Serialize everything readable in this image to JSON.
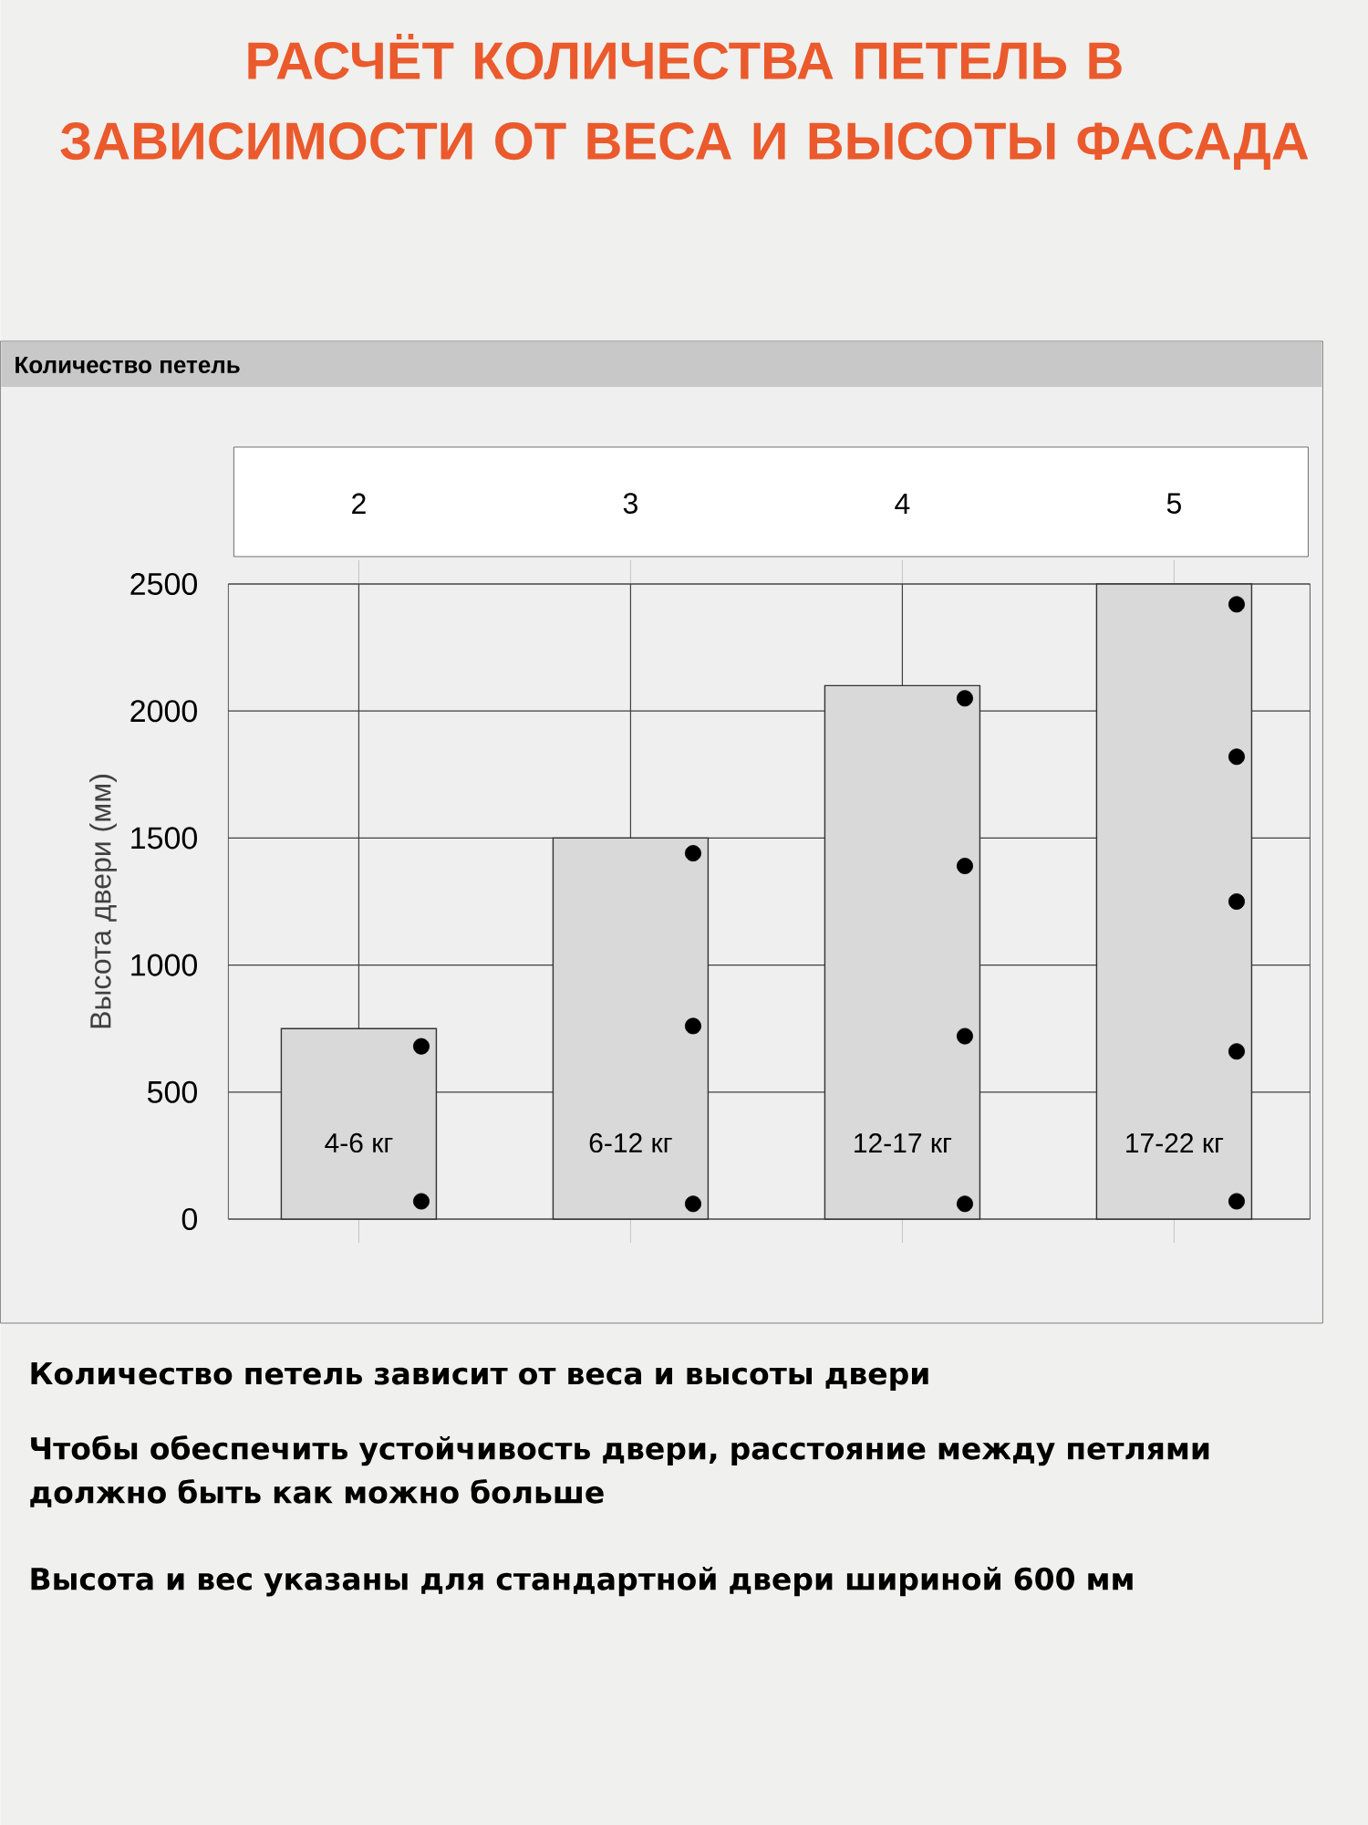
{
  "chart_data": {
    "type": "bar",
    "title": "РАСЧЁТ КОЛИЧЕСТВА ПЕТЕЛЬ В ЗАВИСИМОСТИ ОТ ВЕСА И ВЫСОТЫ ФАСАДА",
    "ylabel": "Высота двери (мм)",
    "categories": [
      "2",
      "3",
      "4",
      "5"
    ],
    "series": [
      {
        "color": "#d9d9d9",
        "values": [
          750,
          1500,
          2100,
          2500
        ]
      },
      {
        "type": "scatter",
        "color": "#000000",
        "marker": "circle",
        "x": [
          "2",
          "2",
          "3",
          "3",
          "3",
          "4",
          "4",
          "4",
          "4",
          "5",
          "5",
          "5",
          "5",
          "5"
        ],
        "values": [
          680,
          70,
          1440,
          760,
          60,
          2050,
          1390,
          720,
          60,
          2420,
          1820,
          1250,
          660,
          70
        ]
      }
    ],
    "ylim": [
      0,
      2500
    ],
    "yticks": [
      0,
      500,
      1000,
      1500,
      2000,
      2500
    ],
    "grid": true,
    "annotations": [
      "4-6 кг",
      "6-12 кг",
      "12-17 кг",
      "17-22 кг",
      "Количество петель",
      "Количество петель зависит от веса и высоты двери",
      "Чтобы обеспечить устойчивость двери, расстояние между петлями должно быть как можно больше",
      "Высота и вес указаны для стандартной двери шириной 600 мм"
    ]
  }
}
